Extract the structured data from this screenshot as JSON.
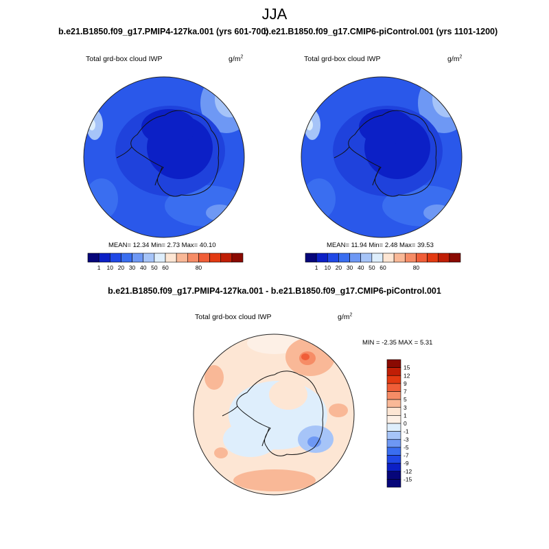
{
  "main_title": "JJA",
  "panels": [
    {
      "title": "b.e21.B1850.f09_g17.PMIP4-127ka.001 (yrs 601-700)",
      "label": "Total grd-box cloud IWP",
      "unit": "g/m",
      "unit_exp": "2",
      "stats": "MEAN=  12.34  Min=   2.73  Max=  40.10"
    },
    {
      "title": "b.e21.B1850.f09_g17.CMIP6-piControl.001 (yrs 1101-1200)",
      "label": "Total grd-box cloud IWP",
      "unit": "g/m",
      "unit_exp": "2",
      "stats": "MEAN=  11.94  Min=   2.48  Max=  39.53"
    },
    {
      "title": "b.e21.B1850.f09_g17.PMIP4-127ka.001 - b.e21.B1850.f09_g17.CMIP6-piControl.001",
      "label": "Total grd-box cloud IWP",
      "unit": "g/m",
      "unit_exp": "2",
      "stats": "MIN =  -2.35 MAX =   5.31"
    }
  ],
  "chart_data": [
    {
      "type": "heatmap",
      "projection": "south-polar stereographic",
      "season": "JJA",
      "variable": "Total grd-box cloud IWP",
      "units": "g/m2",
      "summary": {
        "mean": 12.34,
        "min": 2.73,
        "max": 40.1
      },
      "colorbar_levels": [
        "1",
        "10",
        "20",
        "30",
        "40",
        "50",
        "60",
        "80"
      ],
      "colorbar_colors": [
        "#06067a",
        "#0c20c6",
        "#2048e6",
        "#3a6ef0",
        "#6e98f4",
        "#a6c4f8",
        "#deeefc",
        "#fde6d4",
        "#f9b897",
        "#f68c66",
        "#f05e38",
        "#e33a12",
        "#c01e06",
        "#8a0a02"
      ]
    },
    {
      "type": "heatmap",
      "projection": "south-polar stereographic",
      "season": "JJA",
      "variable": "Total grd-box cloud IWP",
      "units": "g/m2",
      "summary": {
        "mean": 11.94,
        "min": 2.48,
        "max": 39.53
      },
      "colorbar_levels": [
        "1",
        "10",
        "20",
        "30",
        "40",
        "50",
        "60",
        "80"
      ],
      "colorbar_colors": [
        "#06067a",
        "#0c20c6",
        "#2048e6",
        "#3a6ef0",
        "#6e98f4",
        "#a6c4f8",
        "#deeefc",
        "#fde6d4",
        "#f9b897",
        "#f68c66",
        "#f05e38",
        "#e33a12",
        "#c01e06",
        "#8a0a02"
      ]
    },
    {
      "type": "heatmap",
      "projection": "south-polar stereographic",
      "season": "JJA",
      "variable": "Total grd-box cloud IWP",
      "units": "g/m2",
      "summary": {
        "min": -2.35,
        "max": 5.31
      },
      "colorbar_levels": [
        "15",
        "12",
        "9",
        "7",
        "5",
        "3",
        "1",
        "0",
        "-1",
        "-3",
        "-5",
        "-7",
        "-9",
        "-12",
        "-15"
      ],
      "colorbar_colors": [
        "#8a0a02",
        "#c01e06",
        "#e33a12",
        "#f05e38",
        "#f68c66",
        "#f9b897",
        "#fde6d4",
        "#fdf0e6",
        "#deeefc",
        "#a6c4f8",
        "#6e98f4",
        "#3a6ef0",
        "#2048e6",
        "#0c20c6",
        "#06067a",
        "#06067a"
      ]
    }
  ]
}
